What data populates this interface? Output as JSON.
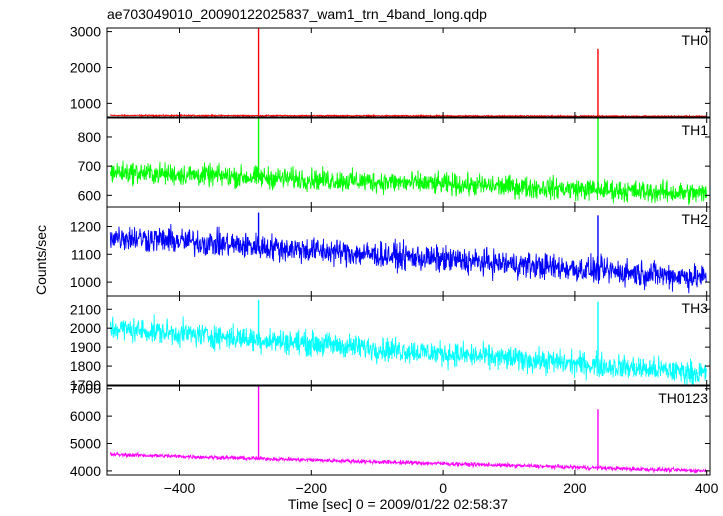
{
  "chart_data": {
    "type": "line",
    "title": "ae703049010_20090122025837_wam1_trn_4band_long.qdp",
    "xlabel": "Time [sec] 0 = 2009/01/22 02:58:37",
    "ylabel": "Counts/sec",
    "xlim": [
      -510,
      405
    ],
    "x_ticks": [
      -400,
      -200,
      0,
      200,
      400
    ],
    "x_tick_labels": [
      "−400",
      "−200",
      "0",
      "200",
      "400"
    ],
    "spike_times": [
      -280,
      235
    ],
    "panels": [
      {
        "name": "TH0",
        "color": "#ff0000",
        "ylim": [
          620,
          3100
        ],
        "y_ticks": [
          1000,
          2000,
          3000
        ],
        "base_start": 665,
        "base_end": 640,
        "noise": 25,
        "spike_peaks": [
          3100,
          2520
        ]
      },
      {
        "name": "TH1",
        "color": "#00ff00",
        "ylim": [
          560,
          865
        ],
        "y_ticks": [
          600,
          700,
          800
        ],
        "base_start": 680,
        "base_end": 605,
        "noise": 55,
        "spike_peaks": [
          865,
          865
        ]
      },
      {
        "name": "TH2",
        "color": "#0000ff",
        "ylim": [
          950,
          1270
        ],
        "y_ticks": [
          1000,
          1100,
          1200
        ],
        "base_start": 1165,
        "base_end": 1015,
        "noise": 70,
        "spike_peaks": [
          1250,
          1240
        ]
      },
      {
        "name": "TH3",
        "color": "#00ffff",
        "ylim": [
          1700,
          2170
        ],
        "y_ticks": [
          1700,
          1800,
          1900,
          2000,
          2100
        ],
        "base_start": 2000,
        "base_end": 1760,
        "noise": 95,
        "spike_peaks": [
          2150,
          2140
        ]
      },
      {
        "name": "TH0123",
        "color": "#ff00ff",
        "ylim": [
          3850,
          7100
        ],
        "y_ticks": [
          4000,
          5000,
          6000,
          7000
        ],
        "base_start": 4600,
        "base_end": 4000,
        "noise": 110,
        "spike_peaks": [
          7100,
          6250
        ]
      }
    ]
  }
}
